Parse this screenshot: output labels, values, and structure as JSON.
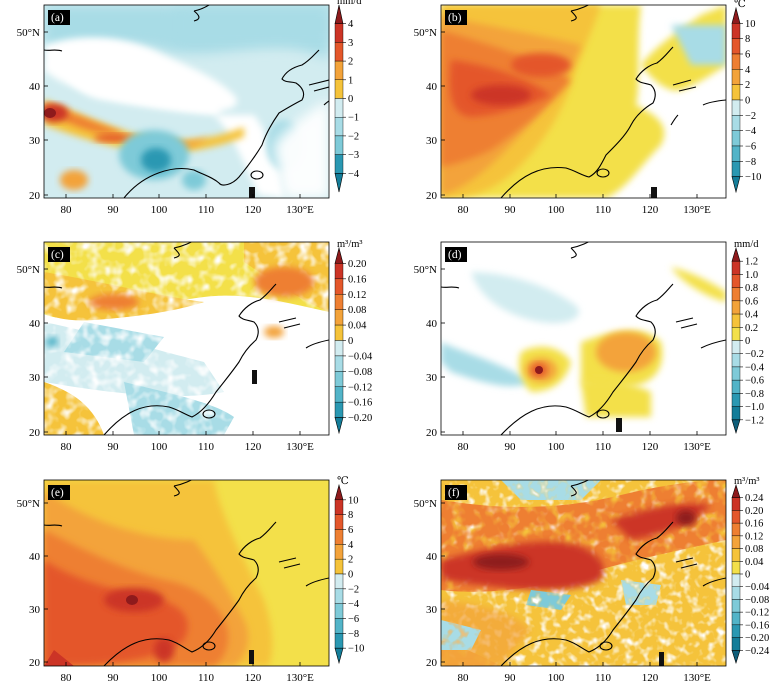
{
  "figure": {
    "lon_ticks": [
      "80",
      "90",
      "100",
      "110",
      "120",
      "130°E"
    ],
    "lat_ticks": [
      "50°N",
      "40",
      "30",
      "20"
    ],
    "colors": {
      "land_white": "#ffffff",
      "coast": "#000000",
      "neg1": "#d2ecf0",
      "neg2": "#a8dce6",
      "neg3": "#7ecad8",
      "neg4": "#52b4c8",
      "neg5": "#2a98b2",
      "neg6": "#137d99",
      "neg7": "#0e5e7a",
      "pos1": "#f3e04a",
      "pos2": "#f5c33a",
      "pos3": "#f3a33a",
      "pos4": "#ee7f32",
      "pos5": "#e4572b",
      "pos6": "#cc3426",
      "pos7": "#8e1a1c"
    },
    "panels": [
      {
        "label": "(a)",
        "unit": "mm/d",
        "ticks": [
          "4",
          "3",
          "2",
          "1",
          "0",
          "−1",
          "−2",
          "−3",
          "−4"
        ]
      },
      {
        "label": "(b)",
        "unit": "℃",
        "ticks": [
          "10",
          "8",
          "6",
          "4",
          "2",
          "0",
          "−2",
          "−4",
          "−6",
          "−8",
          "−10"
        ]
      },
      {
        "label": "(c)",
        "unit": "m³/m³",
        "ticks": [
          "0.20",
          "0.16",
          "0.12",
          "0.08",
          "0.04",
          "0",
          "−0.04",
          "−0.08",
          "−0.12",
          "−0.16",
          "−0.20"
        ]
      },
      {
        "label": "(d)",
        "unit": "mm/d",
        "ticks": [
          "1.2",
          "1.0",
          "0.8",
          "0.6",
          "0.4",
          "0.2",
          "0",
          "−0.2",
          "−0.4",
          "−0.6",
          "−0.8",
          "−1.0",
          "−1.2"
        ]
      },
      {
        "label": "(e)",
        "unit": "℃",
        "ticks": [
          "10",
          "8",
          "6",
          "4",
          "2",
          "0",
          "−2",
          "−4",
          "−6",
          "−8",
          "−10"
        ]
      },
      {
        "label": "(f)",
        "unit": "m³/m³",
        "ticks": [
          "0.24",
          "0.20",
          "0.16",
          "0.12",
          "0.08",
          "0.04",
          "0",
          "−0.04",
          "−0.08",
          "−0.12",
          "−0.16",
          "−0.20",
          "−0.24"
        ]
      }
    ]
  }
}
